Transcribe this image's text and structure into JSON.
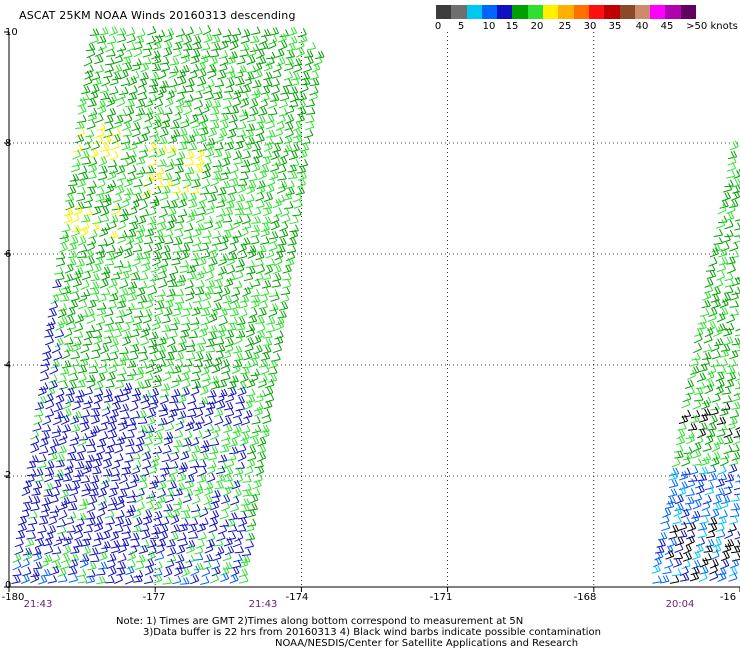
{
  "title": "ASCAT 25KM NOAA Winds 20160313 descending",
  "legend": {
    "colors": [
      "#3c3c3c",
      "#6f6f6f",
      "#00c8f0",
      "#0064ff",
      "#1010c0",
      "#00a000",
      "#30e030",
      "#fff000",
      "#ffb000",
      "#ff7000",
      "#ff1010",
      "#c00000",
      "#8a4a28",
      "#cc8c6c",
      "#ff00ff",
      "#b000b0",
      "#600060"
    ],
    "labels": [
      "0",
      "5",
      "10",
      "15",
      "20",
      "25",
      "30",
      "35",
      "40",
      "45",
      ">50 knots"
    ]
  },
  "axes": {
    "y_ticks": [
      "10",
      "8",
      "6",
      "4",
      "2",
      "0"
    ],
    "x_ticks": [
      "-180",
      "-177",
      "-174",
      "-171",
      "-168",
      "-16"
    ],
    "times": [
      "21:43",
      "21:43",
      "20:04"
    ]
  },
  "notes": [
    "Note: 1) Times are GMT 2)Times along bottom correspond to measurement at 5N",
    "3)Data buffer is 22 hrs from 20160313 4) Black wind barbs indicate possible contamination",
    "NOAA/NESDIS/Center for Satellite Applications and Research"
  ],
  "map_data": {
    "lon_range": [
      -180,
      -165
    ],
    "lat_range": [
      0,
      10
    ],
    "swaths": [
      {
        "time": "21:43",
        "lon_bottom": [
          -180,
          -175.5
        ],
        "lon_top": [
          -178.5,
          -173.5
        ],
        "dominant_speed_kt": "15-20"
      },
      {
        "time": "20:04",
        "lon_bottom": [
          -167.2,
          -165
        ],
        "lon_top": [
          -165.3,
          -165
        ],
        "dominant_speed_kt": "10-20"
      }
    ]
  }
}
